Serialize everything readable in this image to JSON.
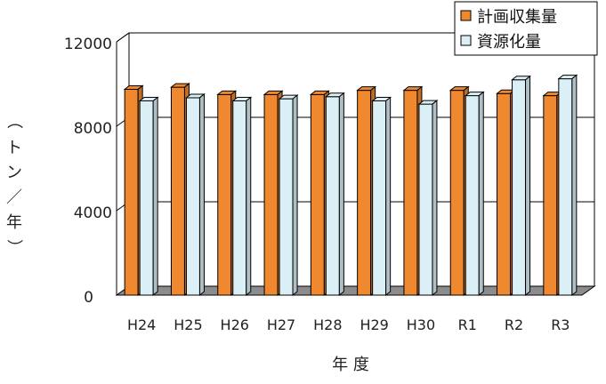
{
  "chart_data": {
    "type": "bar",
    "categories": [
      "H24",
      "H25",
      "H26",
      "H27",
      "H28",
      "H29",
      "H30",
      "R1",
      "R2",
      "R3"
    ],
    "series": [
      {
        "name": "計画収集量",
        "values": [
          9750,
          9850,
          9500,
          9500,
          9500,
          9700,
          9700,
          9700,
          9550,
          9450
        ],
        "color": "#f0882f"
      },
      {
        "name": "資源化量",
        "values": [
          9200,
          9350,
          9200,
          9300,
          9400,
          9200,
          9050,
          9450,
          10200,
          10250
        ],
        "color": "#daf0f6"
      }
    ],
    "xlabel": "年 度",
    "ylabel_chars": [
      "（",
      "ト",
      "ン",
      "／",
      "年",
      "）"
    ],
    "yticks": [
      "12000",
      "8000",
      "4000",
      "0"
    ],
    "ylim": [
      0,
      12000
    ],
    "grid": true,
    "legend_position": "top-right"
  }
}
